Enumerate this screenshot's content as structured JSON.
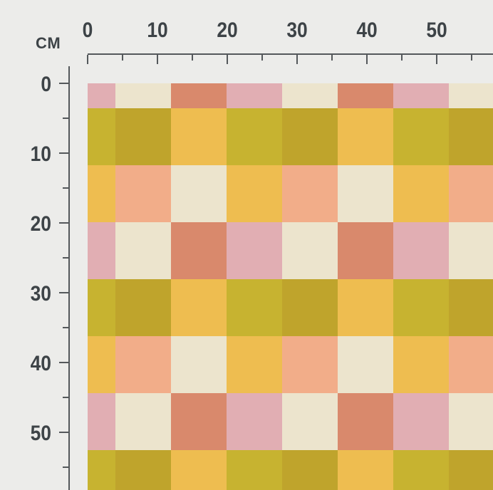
{
  "page": {
    "background": "#ececea"
  },
  "ruler": {
    "unit_label": "CM",
    "text_color": "#3d4347",
    "tick_color": "#54585b",
    "horizontal": {
      "major_labels": [
        "0",
        "10",
        "20",
        "30",
        "40",
        "50"
      ],
      "major_cm": [
        0,
        10,
        20,
        30,
        40,
        50
      ],
      "minor_cm": [
        5,
        15,
        25,
        35,
        45,
        55
      ]
    },
    "vertical": {
      "major_labels": [
        "0",
        "10",
        "20",
        "30",
        "40",
        "50"
      ],
      "major_cm": [
        0,
        10,
        20,
        30,
        40,
        50
      ],
      "minor_cm": [
        5,
        15,
        25,
        35,
        45,
        55
      ]
    }
  },
  "pattern": {
    "palette": {
      "pink": "#e1aeb3",
      "cream": "#ece4cd",
      "terracotta": "#d9896c",
      "lime": "#c7b330",
      "olive": "#bfa42c",
      "gold": "#eebd50",
      "peach": "#f2ad89"
    },
    "grid": [
      [
        "pink",
        "cream",
        "terracotta",
        "pink",
        "cream",
        "terracotta",
        "pink",
        "cream"
      ],
      [
        "lime",
        "olive",
        "gold",
        "lime",
        "olive",
        "gold",
        "lime",
        "olive"
      ],
      [
        "gold",
        "peach",
        "cream",
        "gold",
        "peach",
        "cream",
        "gold",
        "peach"
      ],
      [
        "pink",
        "cream",
        "terracotta",
        "pink",
        "cream",
        "terracotta",
        "pink",
        "cream"
      ],
      [
        "lime",
        "olive",
        "gold",
        "lime",
        "olive",
        "gold",
        "lime",
        "olive"
      ],
      [
        "gold",
        "peach",
        "cream",
        "gold",
        "peach",
        "cream",
        "gold",
        "peach"
      ],
      [
        "pink",
        "cream",
        "terracotta",
        "pink",
        "cream",
        "terracotta",
        "pink",
        "cream"
      ],
      [
        "lime",
        "olive",
        "gold",
        "lime",
        "olive",
        "gold",
        "lime",
        "olive"
      ]
    ]
  }
}
